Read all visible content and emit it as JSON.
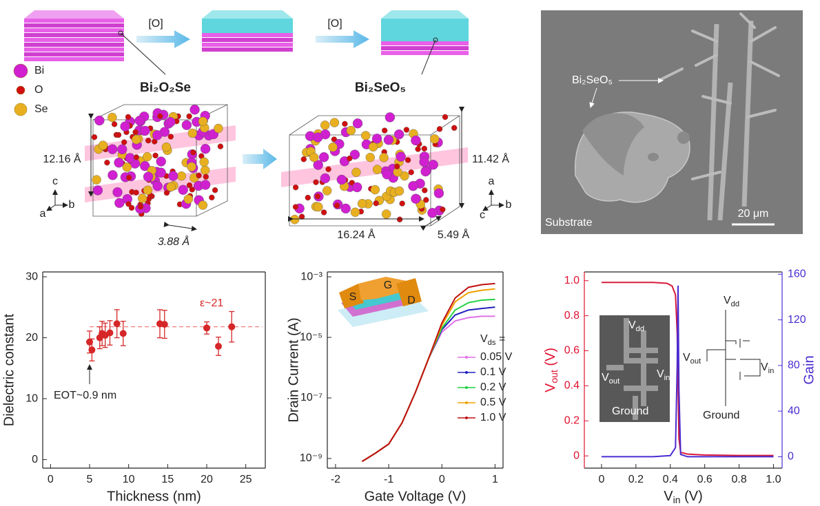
{
  "illustration": {
    "oxidation_step": [
      "[O]",
      "[O]"
    ],
    "legend": [
      "Bi",
      "O",
      "Se"
    ],
    "reactant": "Bi₂O₂Se",
    "product": "Bi₂SeO₅",
    "reactant_dims": [
      "12.16 Å",
      "3.88 Å"
    ],
    "product_dims": [
      "11.42 Å",
      "16.24 Å",
      "5.49 Å"
    ],
    "reactant_axes": [
      "c",
      "a",
      "b"
    ],
    "product_axes": [
      "a",
      "c",
      "b"
    ]
  },
  "micrograph": {
    "label": "Bi₂SeO₅",
    "substrate": "Substrate",
    "scale_bar": "20 μm"
  },
  "chart_data": [
    {
      "type": "scatter",
      "x_label": "Thickness (nm)",
      "y_label": "Dielectric constant",
      "x": [
        5,
        5.3,
        6.3,
        6.6,
        7,
        7.6,
        8.5,
        9.3,
        14,
        14.6,
        20,
        21.5,
        23.2
      ],
      "values": [
        19.3,
        18,
        20,
        20.7,
        20.4,
        20.8,
        22.3,
        20.7,
        22.3,
        22.2,
        21.6,
        18.6,
        21.8
      ],
      "errors": [
        1.8,
        1.8,
        1.8,
        2,
        2,
        2,
        2.3,
        2,
        2.3,
        2.3,
        1,
        1.5,
        2.5
      ],
      "color": "#d62728",
      "reference_line": 21.8,
      "annotations": [
        "ε~21",
        "EOT~0.9 nm"
      ],
      "xlim": [
        -1,
        27.5
      ],
      "xticks": [
        0,
        5,
        10,
        15,
        20,
        25
      ],
      "ylim": [
        -1.4,
        30.8
      ],
      "yticks": [
        0,
        10,
        20,
        30
      ]
    },
    {
      "type": "line",
      "log_y": true,
      "x_label": "Gate Voltage (V)",
      "y_label": "Drain Current (A)",
      "legend_title": [
        "V",
        "ds",
        " ="
      ],
      "device_labels": [
        "S",
        "G",
        "D"
      ],
      "x": [
        -1.5,
        -1.25,
        -1,
        -0.75,
        -0.5,
        -0.25,
        0,
        0.25,
        0.5,
        0.75,
        1
      ],
      "series": [
        {
          "name": "0.05 V",
          "color": "#e070e8",
          "values": [
            8e-10,
            1.5e-09,
            3e-09,
            1.5e-08,
            1.5e-07,
            2e-06,
            1.5e-05,
            3.5e-05,
            4.5e-05,
            5e-05,
            5e-05
          ]
        },
        {
          "name": "0.1 V",
          "color": "#2020c0",
          "values": [
            8e-10,
            1.5e-09,
            3e-09,
            1.5e-08,
            1.5e-07,
            2e-06,
            1.8e-05,
            5.5e-05,
            8e-05,
            9e-05,
            0.0001
          ]
        },
        {
          "name": "0.2 V",
          "color": "#20d040",
          "values": [
            8e-10,
            1.5e-09,
            3e-09,
            1.5e-08,
            1.5e-07,
            2e-06,
            2e-05,
            8e-05,
            0.00014,
            0.00017,
            0.00018
          ]
        },
        {
          "name": "0.5 V",
          "color": "#f0a000",
          "values": [
            8e-10,
            1.5e-09,
            3e-09,
            1.5e-08,
            1.5e-07,
            2e-06,
            2.5e-05,
            0.00015,
            0.0003,
            0.00036,
            0.0004
          ]
        },
        {
          "name": "1.0 V",
          "color": "#c01010",
          "values": [
            8e-10,
            1.5e-09,
            3e-09,
            1.5e-08,
            1.5e-07,
            2e-06,
            3e-05,
            0.0002,
            0.00045,
            0.00055,
            0.0006
          ]
        }
      ],
      "xlim": [
        -2.155,
        1.15
      ],
      "xticks": [
        -2,
        -1,
        0,
        1
      ],
      "ylim": [
        4.8e-10,
        0.00145
      ],
      "yticks": [
        {
          "value": 1e-09,
          "label": "10⁻⁹"
        },
        {
          "value": 1e-07,
          "label": "10⁻⁷"
        },
        {
          "value": 1e-05,
          "label": "10⁻⁵"
        },
        {
          "value": 0.001,
          "label": "10⁻³"
        }
      ]
    },
    {
      "type": "line",
      "x_label": [
        "V",
        "in",
        " (V)"
      ],
      "y_label": [
        "V",
        "out",
        " (V)"
      ],
      "y2_label": "Gain",
      "y_color": "#e0102f",
      "y2_color": "#4b2bd0",
      "chip_labels": [
        [
          "V",
          "dd"
        ],
        [
          "V",
          "out"
        ],
        [
          "V",
          "in"
        ],
        [
          "Ground"
        ]
      ],
      "schematic_labels": [
        [
          "V",
          "dd"
        ],
        [
          "V",
          "out"
        ],
        [
          "V",
          "in"
        ],
        [
          "Ground"
        ]
      ],
      "series": [
        {
          "color": "#d81b3a",
          "x": [
            0,
            0.1,
            0.2,
            0.3,
            0.38,
            0.41,
            0.43,
            0.44,
            0.445,
            0.45,
            0.46,
            0.5,
            0.6,
            0.8,
            1.0
          ],
          "values": [
            0.99,
            0.99,
            0.99,
            0.99,
            0.985,
            0.97,
            0.92,
            0.7,
            0.4,
            0.1,
            0.02,
            0.01,
            0.005,
            0.002,
            0.002
          ]
        },
        {
          "color": "#4b2bd0",
          "axis": "y2",
          "x": [
            0,
            0.3,
            0.4,
            0.43,
            0.44,
            0.445,
            0.45,
            0.46,
            0.5,
            1.0
          ],
          "values": [
            0,
            0,
            1,
            8,
            80,
            150,
            60,
            2,
            0,
            0
          ]
        }
      ],
      "xlim": [
        -0.1,
        1.05
      ],
      "xticks": [
        0,
        0.2,
        0.4,
        0.6,
        0.8,
        {
          "value": 1,
          "label": "1.0"
        }
      ],
      "ylim": [
        -0.07,
        1.05
      ],
      "yticks": [
        0,
        0.2,
        0.4,
        0.6,
        0.8,
        {
          "value": 1,
          "label": "1.0"
        }
      ],
      "y2lim": [
        -10,
        162
      ],
      "y2ticks": [
        0,
        40,
        80,
        120,
        160
      ]
    }
  ]
}
